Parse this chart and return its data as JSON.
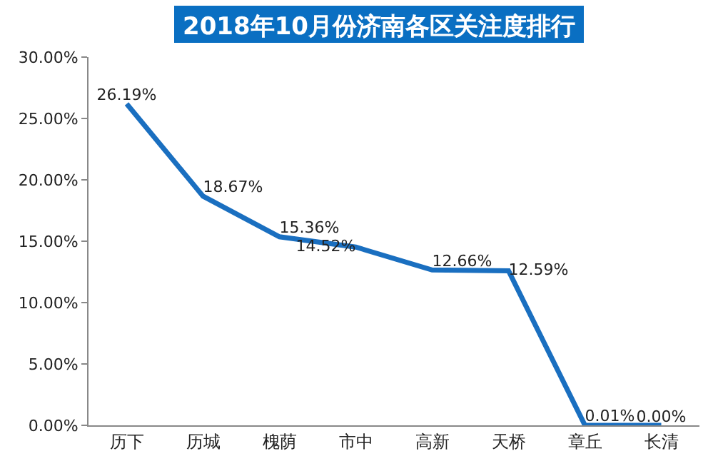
{
  "chart_data": {
    "type": "line",
    "title": "2018年10月份济南各区关注度排行",
    "categories": [
      "历下",
      "历城",
      "槐荫",
      "市中",
      "高新",
      "天桥",
      "章丘",
      "长清"
    ],
    "series": [
      {
        "color": "#1a6fc0",
        "values": [
          26.19,
          18.67,
          15.36,
          14.52,
          12.66,
          12.59,
          0.01,
          0.0
        ],
        "value_labels": [
          "26.19%",
          "18.67%",
          "15.36%",
          "14.52%",
          "12.66%",
          "12.59%",
          "0.01%",
          "0.00%"
        ]
      }
    ],
    "ylim": [
      0,
      30
    ],
    "yticks": [
      {
        "value": 0,
        "label": "0.00%"
      },
      {
        "value": 5,
        "label": "5.00%"
      },
      {
        "value": 10,
        "label": "10.00%"
      },
      {
        "value": 15,
        "label": "15.00%"
      },
      {
        "value": 20,
        "label": "20.00%"
      },
      {
        "value": 25,
        "label": "25.00%"
      },
      {
        "value": 30,
        "label": "30.00%"
      }
    ],
    "grid": false,
    "marker": "none",
    "line_style": "solid"
  }
}
